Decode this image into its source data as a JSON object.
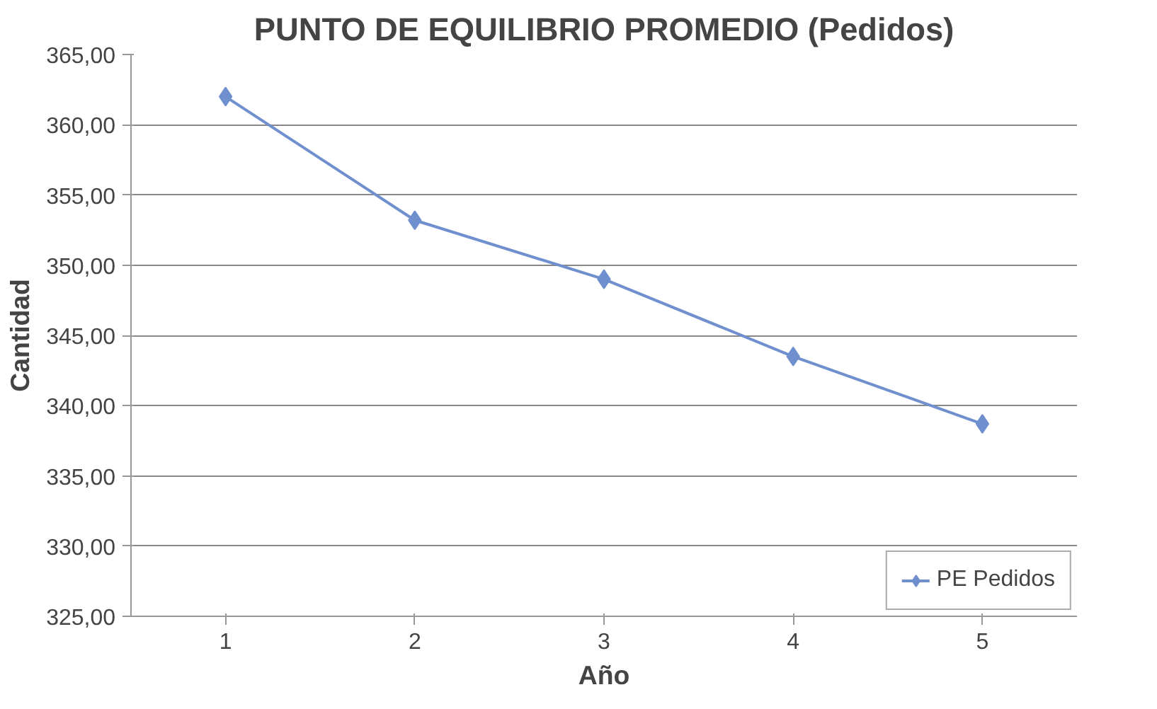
{
  "chart_data": {
    "type": "line",
    "title": "PUNTO DE EQUILIBRIO PROMEDIO (Pedidos)",
    "xlabel": "Año",
    "ylabel": "Cantidad",
    "categories": [
      "1",
      "2",
      "3",
      "4",
      "5"
    ],
    "series": [
      {
        "name": "PE Pedidos",
        "color": "#6f8fce",
        "values": [
          362.0,
          353.2,
          349.0,
          343.5,
          338.7
        ]
      }
    ],
    "ylim": [
      325,
      365
    ],
    "yticks": [
      {
        "value": 325,
        "label": "325,00"
      },
      {
        "value": 330,
        "label": "330,00"
      },
      {
        "value": 335,
        "label": "335,00"
      },
      {
        "value": 340,
        "label": "340,00"
      },
      {
        "value": 345,
        "label": "345,00"
      },
      {
        "value": 350,
        "label": "350,00"
      },
      {
        "value": 355,
        "label": "355,00"
      },
      {
        "value": 360,
        "label": "360,00"
      },
      {
        "value": 365,
        "label": "365,00"
      }
    ],
    "grid": "y",
    "legend": "bottom right",
    "marker": "diamond",
    "line_style": "solid"
  }
}
